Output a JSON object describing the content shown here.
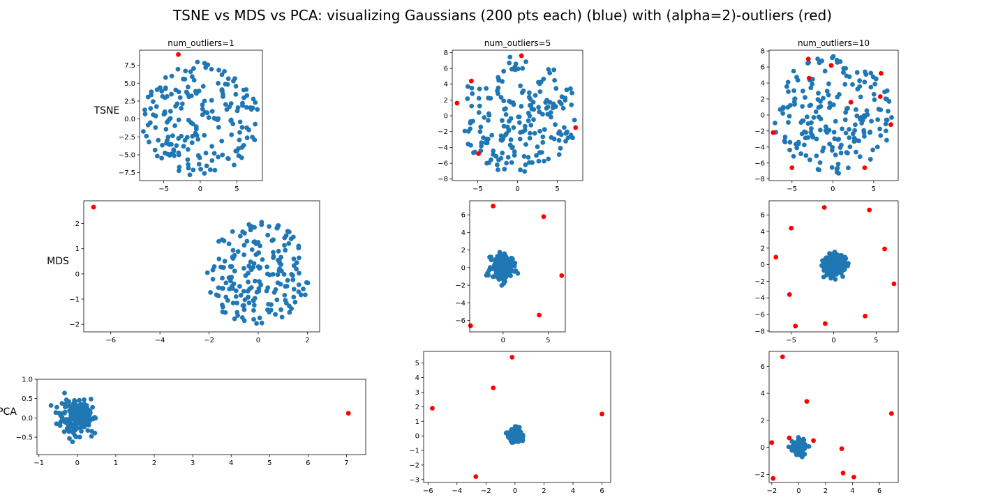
{
  "figure": {
    "title": "TSNE vs MDS vs PCA: visualizing Gaussians (200 pts each) (blue) with (alpha=2)-outliers (red)"
  },
  "rows": [
    "TSNE",
    "MDS",
    "PCA"
  ],
  "columns": [
    "num_outliers=1",
    "num_outliers=5",
    "num_outliers=10"
  ],
  "colors": {
    "inlier": "#1f77b4",
    "outlier": "#ff0000"
  },
  "chart_data": [
    {
      "type": "scatter",
      "row": "TSNE",
      "title": "num_outliers=1",
      "seed": 11,
      "xlim": [
        -8.3,
        8.5
      ],
      "ylim": [
        -8.6,
        9.6
      ],
      "xticks": [
        -5,
        0,
        5
      ],
      "yticks": [
        -7.5,
        -5.0,
        -2.5,
        0.0,
        2.5,
        5.0,
        7.5
      ],
      "ytick_labels": [
        "−7.5",
        "−5.0",
        "−2.5",
        "0.0",
        "2.5",
        "5.0",
        "7.5"
      ],
      "inliers": {
        "count": 200,
        "distribution": "disk",
        "radius": 8
      },
      "outliers": [
        [
          -3.0,
          9.0
        ]
      ]
    },
    {
      "type": "scatter",
      "row": "TSNE",
      "title": "num_outliers=5",
      "seed": 23,
      "xlim": [
        -8.2,
        8.2
      ],
      "ylim": [
        -8.2,
        8.3
      ],
      "xticks": [
        -5,
        0,
        5
      ],
      "yticks": [
        -8,
        -6,
        -4,
        -2,
        0,
        2,
        4,
        6,
        8
      ],
      "inliers": {
        "count": 200,
        "distribution": "disk",
        "radius": 7.5
      },
      "outliers": [
        [
          0.5,
          7.6
        ],
        [
          -5.8,
          4.4
        ],
        [
          -7.6,
          1.6
        ],
        [
          -4.9,
          -4.8
        ],
        [
          7.3,
          -1.5
        ]
      ]
    },
    {
      "type": "scatter",
      "row": "TSNE",
      "title": "num_outliers=10",
      "seed": 37,
      "xlim": [
        -7.8,
        8.0
      ],
      "ylim": [
        -8.2,
        8.1
      ],
      "xticks": [
        -5,
        0,
        5
      ],
      "yticks": [
        -8,
        -6,
        -4,
        -2,
        0,
        2,
        4,
        6,
        8
      ],
      "inliers": {
        "count": 200,
        "distribution": "disk",
        "radius": 7.4
      },
      "outliers": [
        [
          -3.0,
          7.0
        ],
        [
          -2.9,
          4.6
        ],
        [
          -0.2,
          6.2
        ],
        [
          5.9,
          5.2
        ],
        [
          5.8,
          2.3
        ],
        [
          2.2,
          1.6
        ],
        [
          7.1,
          -1.2
        ],
        [
          -7.3,
          -2.2
        ],
        [
          -5.0,
          -6.6
        ],
        [
          3.9,
          -6.6
        ]
      ]
    },
    {
      "type": "scatter",
      "row": "MDS",
      "title": "",
      "seed": 41,
      "xlim": [
        -7.1,
        2.5
      ],
      "ylim": [
        -2.3,
        2.9
      ],
      "xticks": [
        -6,
        -4,
        -2,
        0,
        2
      ],
      "yticks": [
        -2,
        -1,
        0,
        1,
        2
      ],
      "inliers": {
        "count": 200,
        "distribution": "disk",
        "radius": 2.1
      },
      "outliers": [
        [
          -6.7,
          2.65
        ]
      ]
    },
    {
      "type": "scatter",
      "row": "MDS",
      "title": "",
      "seed": 53,
      "xlim": [
        -3.7,
        6.9
      ],
      "ylim": [
        -7.3,
        7.6
      ],
      "xticks": [
        0,
        5
      ],
      "yticks": [
        -6,
        -4,
        -2,
        0,
        2,
        4,
        6
      ],
      "inliers": {
        "count": 200,
        "distribution": "gaussian",
        "sigma": 0.65,
        "max_radius": 2.2
      },
      "outliers": [
        [
          -1.1,
          7.0
        ],
        [
          4.5,
          5.8
        ],
        [
          6.5,
          -0.9
        ],
        [
          4.0,
          -5.4
        ],
        [
          -3.6,
          -6.6
        ]
      ]
    },
    {
      "type": "scatter",
      "row": "MDS",
      "title": "",
      "seed": 67,
      "xlim": [
        -7.6,
        7.6
      ],
      "ylim": [
        -8.1,
        7.7
      ],
      "xticks": [
        -5,
        0,
        5
      ],
      "yticks": [
        -8,
        -6,
        -4,
        -2,
        0,
        2,
        4,
        6
      ],
      "inliers": {
        "count": 200,
        "distribution": "gaussian",
        "sigma": 0.65,
        "max_radius": 2.2
      },
      "outliers": [
        [
          -1.1,
          6.9
        ],
        [
          4.2,
          6.6
        ],
        [
          -5.0,
          4.4
        ],
        [
          6.0,
          1.9
        ],
        [
          -6.8,
          0.9
        ],
        [
          7.1,
          -2.3
        ],
        [
          -5.2,
          -3.6
        ],
        [
          3.7,
          -6.2
        ],
        [
          -4.5,
          -7.4
        ],
        [
          -1.0,
          -7.1
        ]
      ]
    },
    {
      "type": "scatter",
      "row": "PCA",
      "title": "",
      "seed": 79,
      "xlim": [
        -1.05,
        7.5
      ],
      "ylim": [
        -0.95,
        1.0
      ],
      "xticks": [
        -1,
        0,
        1,
        2,
        3,
        4,
        5,
        6,
        7
      ],
      "yticks": [
        -0.5,
        0.0,
        0.5,
        1.0
      ],
      "ytick_labels": [
        "−0.5",
        "0.0",
        "0.5",
        "1.0"
      ],
      "inliers": {
        "count": 200,
        "distribution": "gaussian",
        "sigma": 0.22,
        "max_radius": 0.85
      },
      "outliers": [
        [
          7.05,
          0.12
        ]
      ]
    },
    {
      "type": "scatter",
      "row": "PCA",
      "title": "",
      "seed": 83,
      "xlim": [
        -6.3,
        6.6
      ],
      "ylim": [
        -3.2,
        5.8
      ],
      "xticks": [
        -6,
        -4,
        -2,
        0,
        2,
        4,
        6
      ],
      "yticks": [
        -3,
        -2,
        -1,
        0,
        1,
        2,
        3,
        4,
        5
      ],
      "inliers": {
        "count": 200,
        "distribution": "gaussian",
        "sigma": 0.22,
        "max_radius": 0.7
      },
      "outliers": [
        [
          -0.2,
          5.4
        ],
        [
          -1.5,
          3.3
        ],
        [
          -5.7,
          1.9
        ],
        [
          6.0,
          1.5
        ],
        [
          -2.7,
          -2.8
        ]
      ]
    },
    {
      "type": "scatter",
      "row": "PCA",
      "title": "",
      "seed": 97,
      "xlim": [
        -2.2,
        7.4
      ],
      "ylim": [
        -2.6,
        7.1
      ],
      "xticks": [
        -2,
        0,
        2,
        4,
        6
      ],
      "yticks": [
        -2,
        0,
        2,
        4,
        6
      ],
      "inliers": {
        "count": 200,
        "distribution": "gaussian",
        "sigma": 0.25,
        "max_radius": 0.8
      },
      "outliers": [
        [
          -1.2,
          6.7
        ],
        [
          0.6,
          3.4
        ],
        [
          6.9,
          2.5
        ],
        [
          -0.7,
          0.7
        ],
        [
          1.1,
          0.5
        ],
        [
          -2.0,
          0.35
        ],
        [
          3.2,
          -0.1
        ],
        [
          3.3,
          -1.9
        ],
        [
          4.1,
          -2.2
        ],
        [
          -1.9,
          -2.3
        ]
      ]
    }
  ]
}
